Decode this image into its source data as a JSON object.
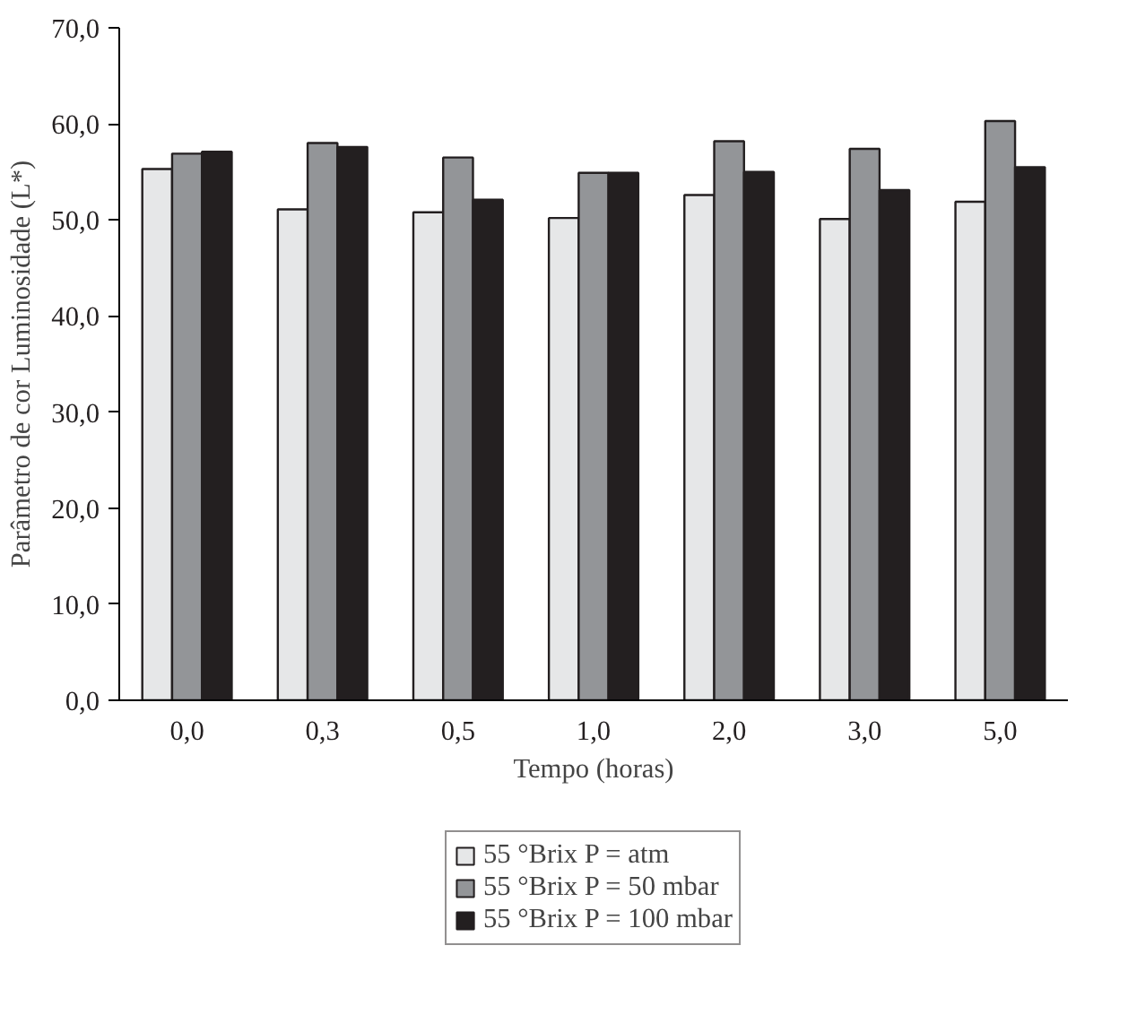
{
  "chart_data": {
    "type": "bar",
    "xlabel": "Tempo (horas)",
    "ylabel": "Parâmetro de cor Luminosidade (L*)",
    "categories": [
      "0,0",
      "0,3",
      "0,5",
      "1,0",
      "2,0",
      "3,0",
      "5,0"
    ],
    "series": [
      {
        "name": "55 °Brix P = atm",
        "color": "#e6e7e8",
        "values": [
          55.3,
          51.1,
          50.8,
          50.2,
          52.6,
          50.1,
          51.9
        ]
      },
      {
        "name": "55 °Brix P = 50 mbar",
        "color": "#939598",
        "values": [
          56.9,
          58.0,
          56.5,
          54.9,
          58.2,
          57.4,
          60.3
        ]
      },
      {
        "name": "55 °Brix P = 100 mbar",
        "color": "#231f20",
        "values": [
          57.1,
          57.6,
          52.1,
          54.9,
          55.0,
          53.1,
          55.5
        ]
      }
    ],
    "ylim": [
      0,
      70
    ],
    "yticks": [
      {
        "value": 0,
        "label": "0,0"
      },
      {
        "value": 10,
        "label": "10,0"
      },
      {
        "value": 20,
        "label": "20,0"
      },
      {
        "value": 30,
        "label": "30,0"
      },
      {
        "value": 40,
        "label": "40,0"
      },
      {
        "value": 50,
        "label": "50,0"
      },
      {
        "value": 60,
        "label": "60,0"
      },
      {
        "value": 70,
        "label": "70,0"
      }
    ],
    "legend": "bottom"
  }
}
